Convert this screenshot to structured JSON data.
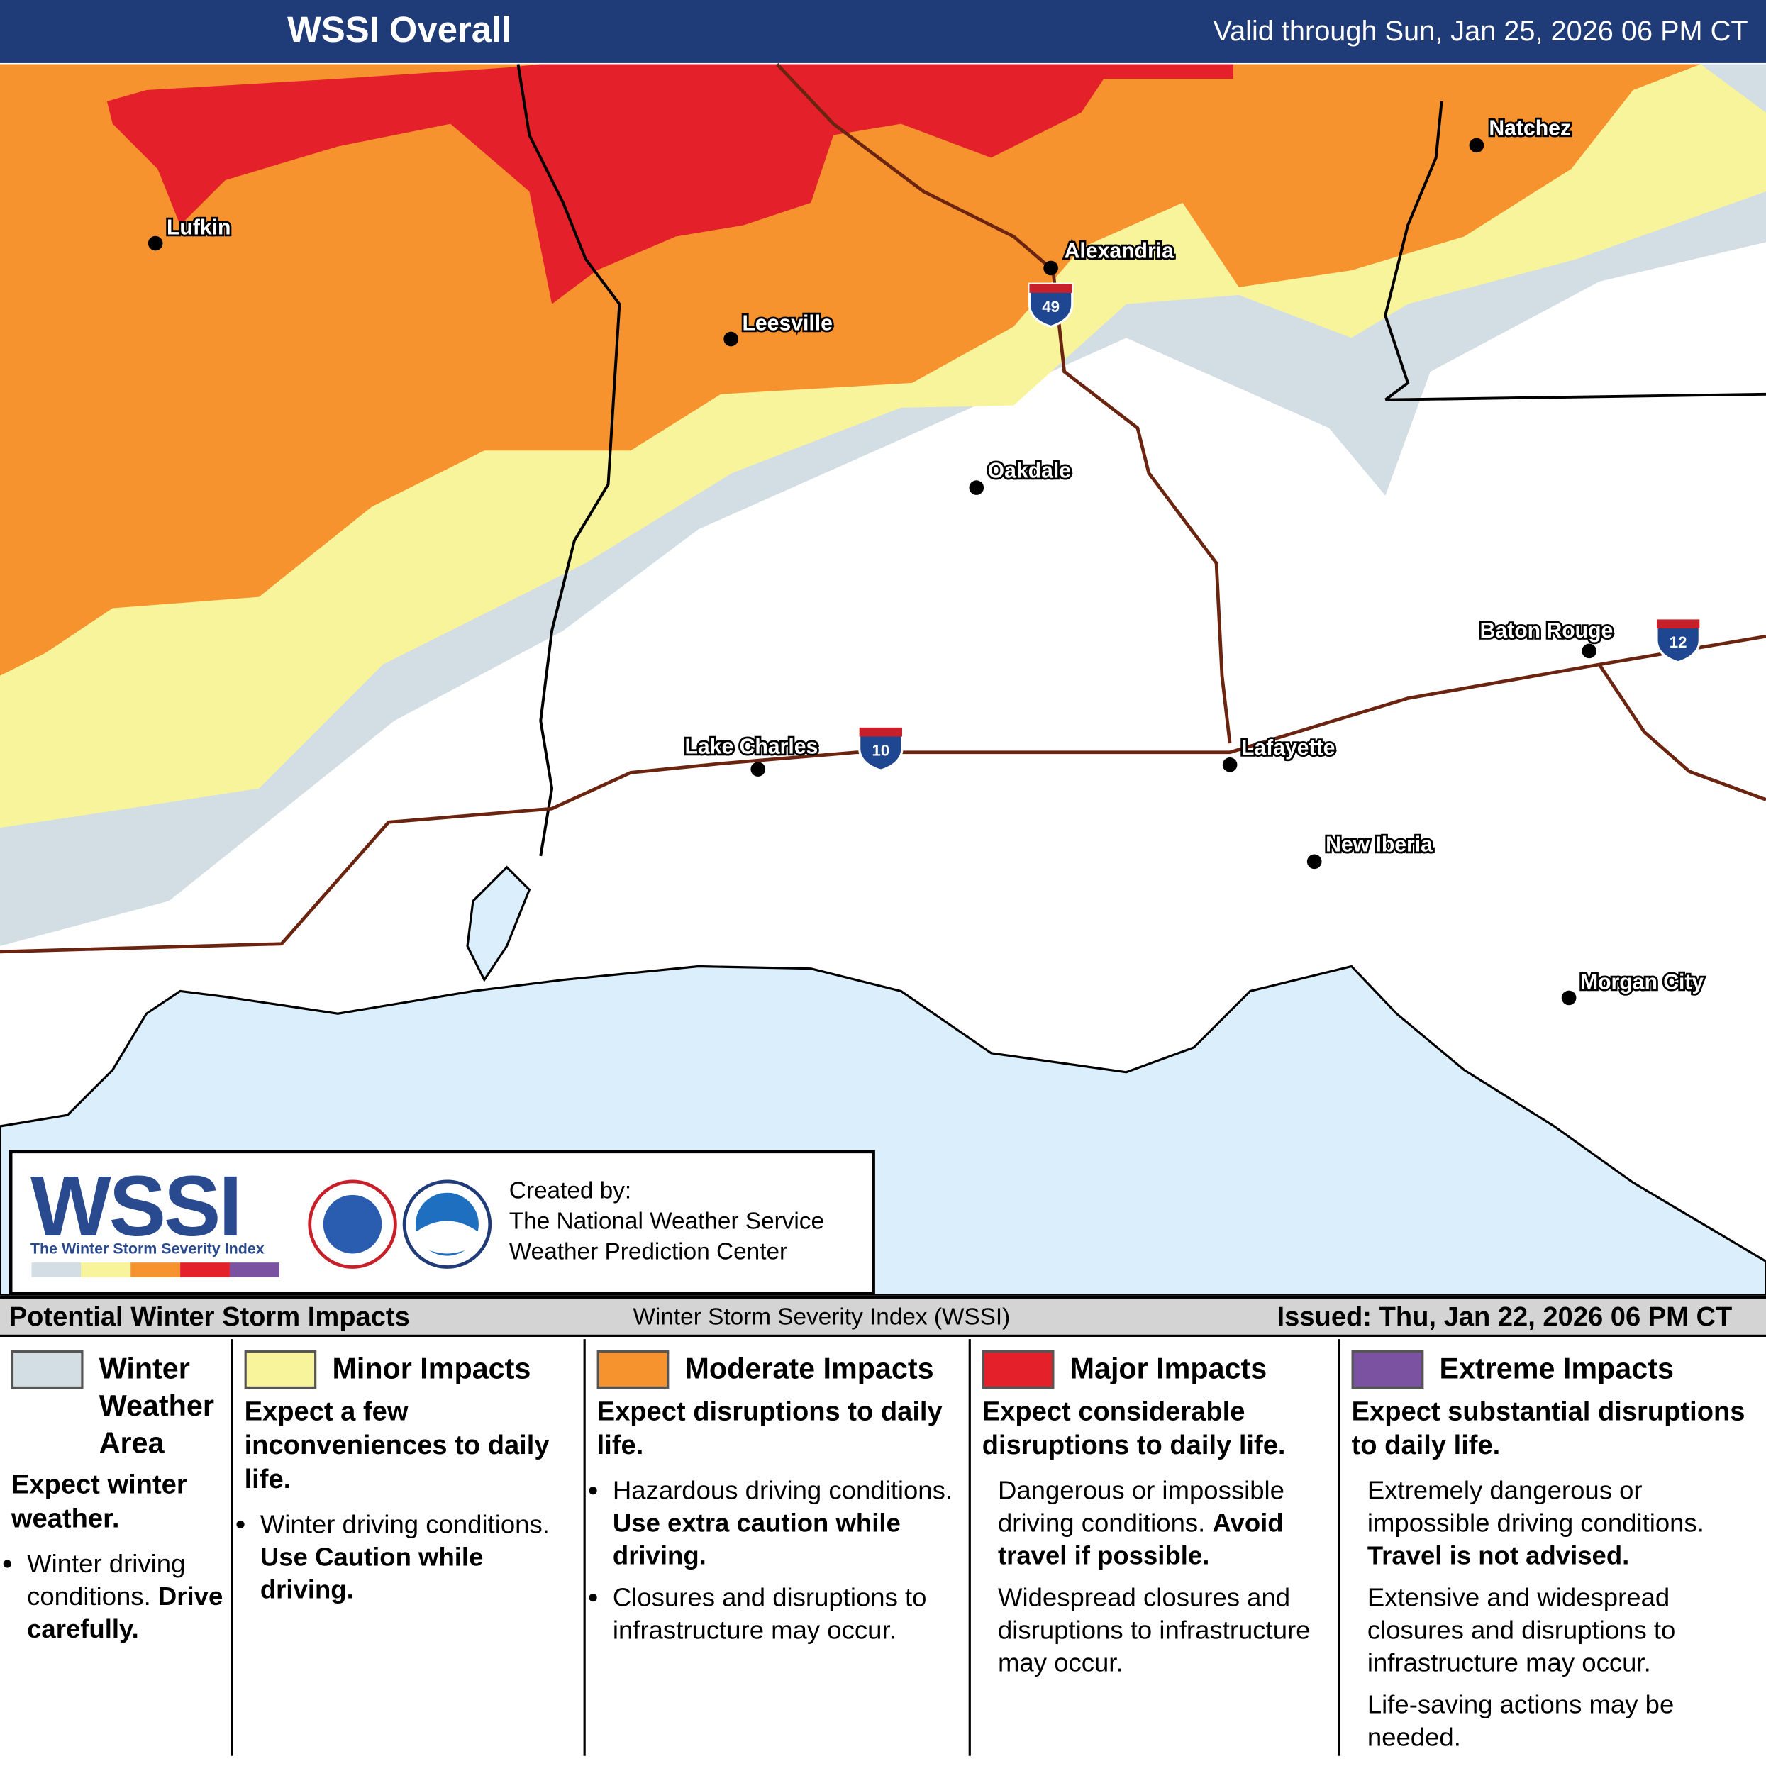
{
  "header": {
    "title": "WSSI Overall",
    "valid": "Valid through Sun, Jan 25, 2026 06 PM CT"
  },
  "map": {
    "cities": [
      "Lufkin",
      "Leesville",
      "Alexandria",
      "Natchez",
      "Oakdale",
      "Baton Rouge",
      "Lake Charles",
      "Lafayette",
      "New Iberia",
      "Morgan City"
    ],
    "interstates": [
      "49",
      "10",
      "12"
    ]
  },
  "credit": {
    "logo": "WSSI",
    "logo_caption": "The Winter Storm Severity Index",
    "created_by": "Created by:",
    "line1": "The National Weather Service",
    "line2": "Weather Prediction Center"
  },
  "legend": {
    "title": "Potential Winter Storm Impacts",
    "subtitle": "Winter Storm Severity Index (WSSI)",
    "issued": "Issued: Thu, Jan 22, 2026 06 PM CT",
    "categories": [
      {
        "name": "Winter Weather Area",
        "color": "#d3dde4",
        "summary": "Expect winter weather.",
        "bullets": true,
        "items": [
          {
            "text": "Winter driving conditions.",
            "emphasis": "Drive carefully."
          }
        ]
      },
      {
        "name": "Minor Impacts",
        "color": "#f8f49c",
        "summary": "Expect a few inconveniences to daily life.",
        "bullets": true,
        "items": [
          {
            "text": "Winter driving conditions.",
            "emphasis": "Use Caution while driving."
          }
        ]
      },
      {
        "name": "Moderate Impacts",
        "color": "#f6932f",
        "summary": "Expect disruptions to daily life.",
        "bullets": true,
        "items": [
          {
            "text": "Hazardous driving conditions.",
            "emphasis": "Use extra caution while driving."
          },
          {
            "text": "Closures and disruptions to infrastructure may occur."
          }
        ]
      },
      {
        "name": "Major Impacts",
        "color": "#e4212b",
        "summary": "Expect considerable disruptions to daily life.",
        "bullets": false,
        "items": [
          {
            "text": "Dangerous or impossible driving conditions.",
            "emphasis": "Avoid travel if possible."
          },
          {
            "text": "Widespread closures and disruptions to infrastructure may occur."
          }
        ]
      },
      {
        "name": "Extreme Impacts",
        "color": "#7b51a1",
        "summary": "Expect substantial disruptions to daily life.",
        "bullets": false,
        "items": [
          {
            "text": "Extremely dangerous or impossible driving conditions.",
            "emphasis": "Travel is not advised."
          },
          {
            "text": "Extensive and widespread closures and disruptions to infrastructure may occur."
          },
          {
            "text": "Life-saving actions may be needed."
          }
        ]
      }
    ]
  }
}
